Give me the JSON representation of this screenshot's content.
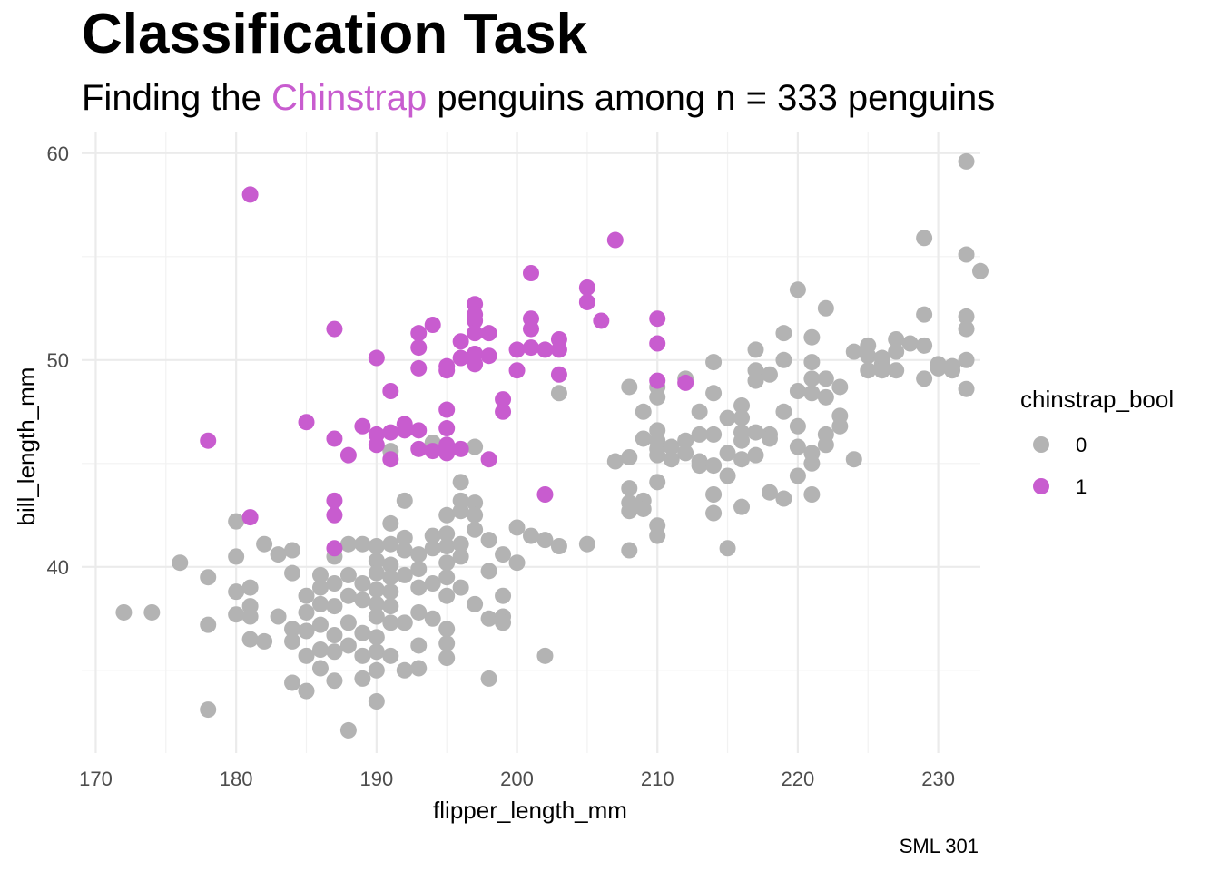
{
  "chart_data": {
    "type": "scatter",
    "title": "Classification Task",
    "subtitle": {
      "prefix": "Finding the ",
      "highlight": "Chinstrap",
      "suffix": " penguins among n = 333 penguins"
    },
    "caption": "SML 301",
    "xlabel": "flipper_length_mm",
    "ylabel": "bill_length_mm",
    "xlim": [
      169,
      233
    ],
    "ylim": [
      31,
      61
    ],
    "xticks": [
      170,
      180,
      190,
      200,
      210,
      220,
      230
    ],
    "yticks": [
      40,
      50,
      60
    ],
    "grid": true,
    "legend": {
      "title": "chinstrap_bool",
      "placement": "right"
    },
    "series": [
      {
        "name": "0",
        "color": "#b3b3b3",
        "points": [
          [
            172,
            37.8
          ],
          [
            174,
            37.8
          ],
          [
            176,
            40.2
          ],
          [
            178,
            39.5
          ],
          [
            178,
            37.2
          ],
          [
            178,
            33.1
          ],
          [
            180,
            42.2
          ],
          [
            180,
            40.5
          ],
          [
            180,
            38.8
          ],
          [
            180,
            37.7
          ],
          [
            181,
            39.0
          ],
          [
            181,
            38.1
          ],
          [
            181,
            37.6
          ],
          [
            181,
            36.5
          ],
          [
            182,
            41.1
          ],
          [
            182,
            36.4
          ],
          [
            183,
            40.6
          ],
          [
            183,
            37.6
          ],
          [
            184,
            40.8
          ],
          [
            184,
            39.7
          ],
          [
            184,
            37.0
          ],
          [
            184,
            36.4
          ],
          [
            184,
            34.4
          ],
          [
            185,
            38.6
          ],
          [
            185,
            37.8
          ],
          [
            185,
            36.9
          ],
          [
            185,
            35.7
          ],
          [
            185,
            34.0
          ],
          [
            186,
            39.6
          ],
          [
            186,
            39.0
          ],
          [
            186,
            38.2
          ],
          [
            186,
            37.2
          ],
          [
            186,
            36.0
          ],
          [
            186,
            35.1
          ],
          [
            187,
            40.5
          ],
          [
            187,
            39.2
          ],
          [
            187,
            38.1
          ],
          [
            187,
            36.7
          ],
          [
            187,
            35.9
          ],
          [
            187,
            34.5
          ],
          [
            188,
            41.1
          ],
          [
            188,
            39.6
          ],
          [
            188,
            38.6
          ],
          [
            188,
            37.3
          ],
          [
            188,
            36.2
          ],
          [
            188,
            32.1
          ],
          [
            189,
            41.1
          ],
          [
            189,
            39.2
          ],
          [
            189,
            38.4
          ],
          [
            189,
            36.8
          ],
          [
            189,
            35.7
          ],
          [
            189,
            34.6
          ],
          [
            190,
            41.0
          ],
          [
            190,
            40.3
          ],
          [
            190,
            39.7
          ],
          [
            190,
            38.9
          ],
          [
            190,
            38.2
          ],
          [
            190,
            37.6
          ],
          [
            190,
            36.6
          ],
          [
            190,
            35.9
          ],
          [
            190,
            35.0
          ],
          [
            190,
            33.5
          ],
          [
            191,
            42.1
          ],
          [
            191,
            41.1
          ],
          [
            191,
            40.1
          ],
          [
            191,
            39.5
          ],
          [
            191,
            38.8
          ],
          [
            191,
            38.1
          ],
          [
            191,
            37.3
          ],
          [
            191,
            35.7
          ],
          [
            191,
            45.6
          ],
          [
            192,
            41.4
          ],
          [
            192,
            40.8
          ],
          [
            192,
            39.6
          ],
          [
            192,
            37.3
          ],
          [
            192,
            35.0
          ],
          [
            192,
            43.2
          ],
          [
            193,
            40.6
          ],
          [
            193,
            39.9
          ],
          [
            193,
            39.0
          ],
          [
            193,
            37.8
          ],
          [
            193,
            36.2
          ],
          [
            193,
            35.1
          ],
          [
            194,
            41.5
          ],
          [
            194,
            40.9
          ],
          [
            194,
            39.2
          ],
          [
            194,
            37.5
          ],
          [
            194,
            46.0
          ],
          [
            195,
            42.5
          ],
          [
            195,
            41.6
          ],
          [
            195,
            41.0
          ],
          [
            195,
            40.2
          ],
          [
            195,
            39.5
          ],
          [
            195,
            38.6
          ],
          [
            195,
            37.0
          ],
          [
            195,
            36.3
          ],
          [
            195,
            35.6
          ],
          [
            196,
            44.1
          ],
          [
            196,
            42.7
          ],
          [
            196,
            41.1
          ],
          [
            196,
            40.5
          ],
          [
            196,
            39.0
          ],
          [
            196,
            43.2
          ],
          [
            197,
            43.1
          ],
          [
            197,
            42.5
          ],
          [
            197,
            41.8
          ],
          [
            197,
            38.2
          ],
          [
            197,
            45.8
          ],
          [
            198,
            41.3
          ],
          [
            198,
            39.8
          ],
          [
            198,
            37.5
          ],
          [
            198,
            34.6
          ],
          [
            199,
            40.6
          ],
          [
            199,
            38.6
          ],
          [
            199,
            37.6
          ],
          [
            199,
            37.3
          ],
          [
            200,
            41.9
          ],
          [
            200,
            40.2
          ],
          [
            201,
            41.5
          ],
          [
            202,
            41.3
          ],
          [
            202,
            35.7
          ],
          [
            203,
            48.4
          ],
          [
            203,
            41.0
          ],
          [
            205,
            41.1
          ],
          [
            207,
            45.1
          ],
          [
            208,
            48.7
          ],
          [
            208,
            45.3
          ],
          [
            208,
            43.8
          ],
          [
            208,
            43.1
          ],
          [
            208,
            42.7
          ],
          [
            208,
            40.8
          ],
          [
            209,
            47.5
          ],
          [
            209,
            46.2
          ],
          [
            209,
            43.2
          ],
          [
            209,
            42.8
          ],
          [
            210,
            48.7
          ],
          [
            210,
            48.2
          ],
          [
            210,
            46.6
          ],
          [
            210,
            46.1
          ],
          [
            210,
            45.7
          ],
          [
            210,
            45.4
          ],
          [
            210,
            44.1
          ],
          [
            210,
            42.0
          ],
          [
            210,
            41.5
          ],
          [
            211,
            45.8
          ],
          [
            211,
            45.2
          ],
          [
            212,
            46.1
          ],
          [
            212,
            45.5
          ],
          [
            212,
            49.1
          ],
          [
            213,
            47.5
          ],
          [
            213,
            46.4
          ],
          [
            213,
            45.1
          ],
          [
            213,
            44.9
          ],
          [
            214,
            49.9
          ],
          [
            214,
            48.4
          ],
          [
            214,
            46.4
          ],
          [
            214,
            44.9
          ],
          [
            214,
            43.5
          ],
          [
            214,
            42.6
          ],
          [
            215,
            47.2
          ],
          [
            215,
            45.5
          ],
          [
            215,
            44.4
          ],
          [
            215,
            40.9
          ],
          [
            216,
            47.8
          ],
          [
            216,
            47.2
          ],
          [
            216,
            46.5
          ],
          [
            216,
            46.1
          ],
          [
            216,
            45.2
          ],
          [
            216,
            42.9
          ],
          [
            217,
            50.5
          ],
          [
            217,
            49.5
          ],
          [
            217,
            49.0
          ],
          [
            217,
            46.5
          ],
          [
            217,
            45.4
          ],
          [
            218,
            49.3
          ],
          [
            218,
            46.4
          ],
          [
            218,
            46.2
          ],
          [
            218,
            43.6
          ],
          [
            219,
            51.3
          ],
          [
            219,
            50.0
          ],
          [
            219,
            47.5
          ],
          [
            219,
            43.3
          ],
          [
            220,
            53.4
          ],
          [
            220,
            48.5
          ],
          [
            220,
            46.8
          ],
          [
            220,
            45.8
          ],
          [
            220,
            44.4
          ],
          [
            221,
            51.1
          ],
          [
            221,
            49.9
          ],
          [
            221,
            49.1
          ],
          [
            221,
            48.4
          ],
          [
            221,
            45.5
          ],
          [
            221,
            45.0
          ],
          [
            221,
            43.5
          ],
          [
            222,
            52.5
          ],
          [
            222,
            49.1
          ],
          [
            222,
            48.2
          ],
          [
            222,
            46.4
          ],
          [
            222,
            45.9
          ],
          [
            223,
            48.7
          ],
          [
            223,
            47.3
          ],
          [
            223,
            46.8
          ],
          [
            224,
            50.4
          ],
          [
            224,
            45.2
          ],
          [
            225,
            50.7
          ],
          [
            225,
            50.2
          ],
          [
            225,
            49.5
          ],
          [
            226,
            50.1
          ],
          [
            226,
            49.8
          ],
          [
            226,
            49.5
          ],
          [
            227,
            51.0
          ],
          [
            227,
            50.4
          ],
          [
            227,
            49.5
          ],
          [
            228,
            50.8
          ],
          [
            229,
            55.9
          ],
          [
            229,
            52.2
          ],
          [
            229,
            50.7
          ],
          [
            229,
            49.1
          ],
          [
            230,
            49.8
          ],
          [
            230,
            49.6
          ],
          [
            231,
            49.5
          ],
          [
            231,
            49.7
          ],
          [
            232,
            59.6
          ],
          [
            232,
            55.1
          ],
          [
            232,
            52.1
          ],
          [
            232,
            51.5
          ],
          [
            232,
            50.0
          ],
          [
            232,
            48.6
          ],
          [
            233,
            54.3
          ]
        ]
      },
      {
        "name": "1",
        "color": "#c85ccf",
        "points": [
          [
            178,
            46.1
          ],
          [
            181,
            58.0
          ],
          [
            181,
            42.4
          ],
          [
            185,
            47.0
          ],
          [
            187,
            51.5
          ],
          [
            187,
            46.2
          ],
          [
            187,
            43.2
          ],
          [
            187,
            42.5
          ],
          [
            187,
            40.9
          ],
          [
            188,
            45.4
          ],
          [
            189,
            46.8
          ],
          [
            190,
            50.1
          ],
          [
            190,
            46.4
          ],
          [
            190,
            45.9
          ],
          [
            191,
            48.5
          ],
          [
            191,
            46.5
          ],
          [
            191,
            45.2
          ],
          [
            192,
            46.9
          ],
          [
            192,
            46.6
          ],
          [
            193,
            51.3
          ],
          [
            193,
            50.6
          ],
          [
            193,
            49.6
          ],
          [
            193,
            46.6
          ],
          [
            193,
            45.7
          ],
          [
            194,
            51.7
          ],
          [
            194,
            45.6
          ],
          [
            195,
            49.7
          ],
          [
            195,
            49.5
          ],
          [
            195,
            47.6
          ],
          [
            195,
            46.7
          ],
          [
            195,
            45.9
          ],
          [
            195,
            45.5
          ],
          [
            196,
            50.9
          ],
          [
            196,
            50.1
          ],
          [
            196,
            45.7
          ],
          [
            197,
            52.7
          ],
          [
            197,
            52.2
          ],
          [
            197,
            51.9
          ],
          [
            197,
            51.3
          ],
          [
            197,
            50.3
          ],
          [
            197,
            49.8
          ],
          [
            198,
            51.3
          ],
          [
            198,
            50.2
          ],
          [
            198,
            45.2
          ],
          [
            199,
            48.1
          ],
          [
            199,
            47.5
          ],
          [
            200,
            50.5
          ],
          [
            200,
            49.5
          ],
          [
            201,
            54.2
          ],
          [
            201,
            52.0
          ],
          [
            201,
            51.5
          ],
          [
            201,
            50.6
          ],
          [
            202,
            50.5
          ],
          [
            202,
            43.5
          ],
          [
            203,
            51.0
          ],
          [
            203,
            50.5
          ],
          [
            203,
            49.3
          ],
          [
            205,
            53.5
          ],
          [
            205,
            52.8
          ],
          [
            206,
            51.9
          ],
          [
            207,
            55.8
          ],
          [
            210,
            52.0
          ],
          [
            210,
            50.8
          ],
          [
            210,
            49.0
          ],
          [
            212,
            48.9
          ]
        ]
      }
    ]
  }
}
